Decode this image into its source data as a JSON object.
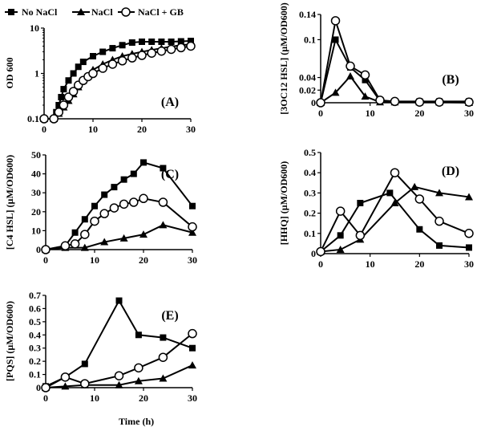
{
  "legend": {
    "series": [
      {
        "name": "No NaCl",
        "marker": "square-filled"
      },
      {
        "name": "NaCl",
        "marker": "triangle-filled"
      },
      {
        "name": "NaCl + GB",
        "marker": "circle-open"
      }
    ]
  },
  "x_axis_label": "Time (h)",
  "chart_data": [
    {
      "type": "line",
      "panel": "(A)",
      "ylabel": "OD 600",
      "yscale": "log",
      "xlim": [
        0,
        30
      ],
      "ylim": [
        0.1,
        10
      ],
      "xticks": [
        "0",
        "10",
        "20",
        "30"
      ],
      "yticks": [
        "0.1",
        "1",
        "10"
      ],
      "series": [
        {
          "name": "No NaCl",
          "x": [
            0,
            2,
            2.5,
            3,
            3.5,
            4,
            5,
            6,
            7,
            8,
            10,
            12,
            14,
            16,
            18,
            20,
            22,
            24,
            26,
            28,
            30
          ],
          "y": [
            0.1,
            0.1,
            0.14,
            0.2,
            0.3,
            0.45,
            0.7,
            1.0,
            1.4,
            1.8,
            2.4,
            3.0,
            3.6,
            4.2,
            4.8,
            5.0,
            5.0,
            5.0,
            5.0,
            5.1,
            5.2
          ]
        },
        {
          "name": "NaCl",
          "x": [
            0,
            2,
            3,
            4,
            5,
            6,
            7,
            8,
            10,
            12,
            14,
            16,
            18,
            20,
            22,
            24,
            26,
            28,
            30
          ],
          "y": [
            0.1,
            0.1,
            0.13,
            0.18,
            0.25,
            0.35,
            0.5,
            0.7,
            1.2,
            1.6,
            2.0,
            2.4,
            2.7,
            3.0,
            3.3,
            3.6,
            3.9,
            4.2,
            4.4
          ]
        },
        {
          "name": "NaCl + GB",
          "x": [
            0,
            2,
            3,
            4,
            5,
            6,
            7,
            8,
            9,
            10,
            12,
            14,
            16,
            18,
            20,
            22,
            24,
            26,
            28,
            30
          ],
          "y": [
            0.1,
            0.1,
            0.14,
            0.2,
            0.3,
            0.4,
            0.55,
            0.7,
            0.85,
            1.0,
            1.3,
            1.6,
            1.9,
            2.2,
            2.5,
            2.8,
            3.1,
            3.4,
            3.7,
            4.0
          ]
        }
      ]
    },
    {
      "type": "line",
      "panel": "(B)",
      "ylabel": "[3OC12 HSL] (µM/OD600)",
      "xlim": [
        0,
        30
      ],
      "ylim": [
        0,
        0.14
      ],
      "xticks": [
        "0",
        "10",
        "20",
        "30"
      ],
      "yticks": [
        "0",
        "0.02",
        "0.04",
        "0.1",
        "0.14"
      ],
      "series": [
        {
          "name": "No NaCl",
          "x": [
            0,
            3,
            6,
            9,
            12,
            15,
            20,
            24,
            30
          ],
          "y": [
            0,
            0.1,
            0.056,
            0.036,
            0.003,
            0.002,
            0.002,
            0.002,
            0.002
          ]
        },
        {
          "name": "NaCl",
          "x": [
            0,
            3,
            6,
            9,
            12,
            15,
            20,
            24,
            30
          ],
          "y": [
            0,
            0.016,
            0.042,
            0.01,
            0.001,
            0.001,
            0.001,
            0.001,
            0.0
          ]
        },
        {
          "name": "NaCl + GB",
          "x": [
            0,
            3,
            6,
            9,
            12,
            15,
            20,
            24,
            30
          ],
          "y": [
            0,
            0.13,
            0.058,
            0.044,
            0.004,
            0.002,
            0.001,
            0.001,
            0.001
          ]
        }
      ]
    },
    {
      "type": "line",
      "panel": "(C)",
      "ylabel": "[C4 HSL] (µM/OD600)",
      "xlim": [
        0,
        30
      ],
      "ylim": [
        0,
        50
      ],
      "xticks": [
        "0",
        "10",
        "20",
        "30"
      ],
      "yticks": [
        "0",
        "10",
        "20",
        "30",
        "40",
        "50"
      ],
      "series": [
        {
          "name": "No NaCl",
          "x": [
            0,
            4,
            6,
            8,
            10,
            12,
            14,
            16,
            18,
            20,
            24,
            30
          ],
          "y": [
            0,
            2,
            9,
            16,
            23,
            29,
            33,
            37,
            40,
            46,
            43,
            23
          ]
        },
        {
          "name": "NaCl",
          "x": [
            0,
            4,
            8,
            12,
            16,
            20,
            24,
            30
          ],
          "y": [
            0,
            1,
            1,
            4,
            6,
            8,
            13,
            9
          ]
        },
        {
          "name": "NaCl + GB",
          "x": [
            0,
            4,
            6,
            8,
            10,
            12,
            14,
            16,
            18,
            20,
            24,
            30
          ],
          "y": [
            0,
            2,
            3,
            8,
            15,
            19,
            22,
            24,
            25,
            27,
            25,
            12
          ]
        }
      ]
    },
    {
      "type": "line",
      "panel": "(D)",
      "ylabel": "[HHQ] (µM/OD600)",
      "xlim": [
        0,
        30
      ],
      "ylim": [
        0,
        0.5
      ],
      "xticks": [
        "0",
        "10",
        "20",
        "30"
      ],
      "yticks": [
        "0",
        "0.1",
        "0.2",
        "0.3",
        "0.4",
        "0.5"
      ],
      "series": [
        {
          "name": "No NaCl",
          "x": [
            0,
            4,
            8,
            14,
            20,
            24,
            30
          ],
          "y": [
            0.01,
            0.09,
            0.25,
            0.3,
            0.12,
            0.04,
            0.03
          ]
        },
        {
          "name": "NaCl",
          "x": [
            0,
            4,
            8,
            15,
            19,
            24,
            30
          ],
          "y": [
            0.01,
            0.02,
            0.07,
            0.25,
            0.33,
            0.3,
            0.28
          ]
        },
        {
          "name": "NaCl + GB",
          "x": [
            0,
            4,
            8,
            15,
            20,
            24,
            30
          ],
          "y": [
            0.01,
            0.21,
            0.09,
            0.4,
            0.27,
            0.16,
            0.1
          ]
        }
      ]
    },
    {
      "type": "line",
      "panel": "(E)",
      "ylabel": "[PQS] (µM/OD600)",
      "xlim": [
        0,
        30
      ],
      "ylim": [
        0,
        0.7
      ],
      "xticks": [
        "0",
        "10",
        "20",
        "30"
      ],
      "yticks": [
        "0",
        "0.1",
        "0.2",
        "0.3",
        "0.4",
        "0.5",
        "0.6",
        "0.7"
      ],
      "series": [
        {
          "name": "No NaCl",
          "x": [
            0,
            4,
            8,
            15,
            19,
            24,
            30
          ],
          "y": [
            0.01,
            0.08,
            0.18,
            0.66,
            0.4,
            0.38,
            0.3
          ]
        },
        {
          "name": "NaCl",
          "x": [
            0,
            4,
            8,
            15,
            19,
            24,
            30
          ],
          "y": [
            0.0,
            0.01,
            0.02,
            0.02,
            0.05,
            0.07,
            0.17
          ]
        },
        {
          "name": "NaCl + GB",
          "x": [
            0,
            4,
            8,
            15,
            19,
            24,
            30
          ],
          "y": [
            0.0,
            0.08,
            0.03,
            0.09,
            0.15,
            0.23,
            0.41
          ]
        }
      ]
    }
  ]
}
